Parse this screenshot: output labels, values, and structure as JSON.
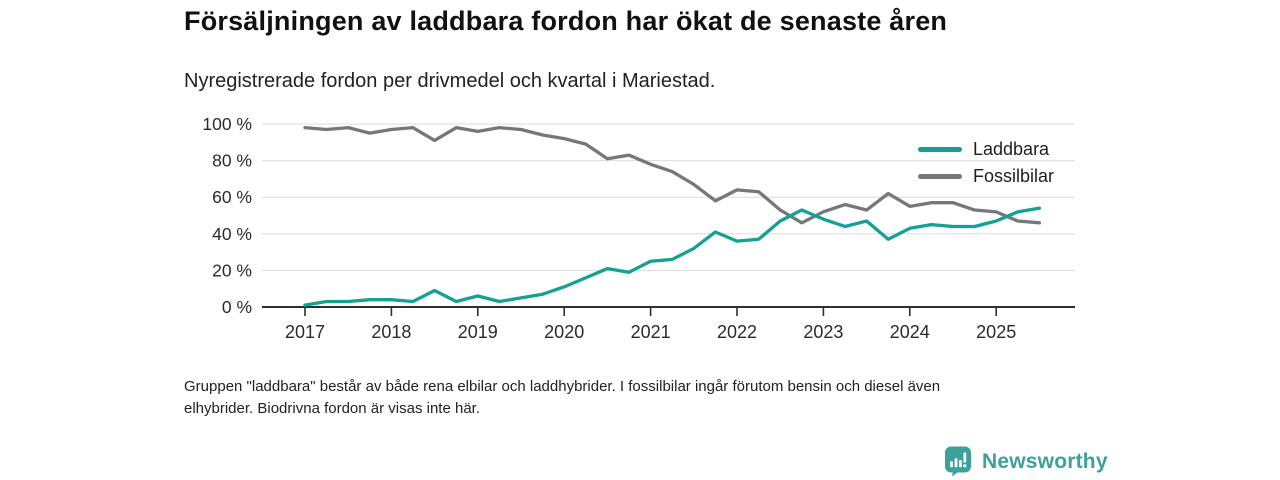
{
  "header": {
    "title": "Försäljningen av laddbara fordon har ökat de senaste åren",
    "subtitle": "Nyregistrerade fordon per drivmedel och kvartal i Mariestad."
  },
  "footnote": {
    "lines": [
      "Gruppen \"laddbara\" består av både rena elbilar och laddhybrider. I fossilbilar ingår förutom bensin och diesel även",
      "elhybrider. Biodrivna fordon är visas inte här."
    ]
  },
  "logo": {
    "text": "Newsworthy",
    "icon": "bar-chart-speech-bubble-icon"
  },
  "colors": {
    "laddbara": "#13a193",
    "fossilbilar": "#77777a",
    "grid": "#dcdcdc",
    "axis": "#2e2e2e",
    "tick_label": "#2b2b2b",
    "logo_teal": "#3ba19a"
  },
  "chart_data": {
    "type": "line",
    "title": "Försäljningen av laddbara fordon har ökat de senaste åren",
    "subtitle": "Nyregistrerade fordon per drivmedel och kvartal i Mariestad.",
    "unit": "%",
    "ylim": [
      0,
      100
    ],
    "grid": "horizontal",
    "legend_position": "top-right",
    "categories": [
      "2017Q1",
      "2017Q2",
      "2017Q3",
      "2017Q4",
      "2018Q1",
      "2018Q2",
      "2018Q3",
      "2018Q4",
      "2019Q1",
      "2019Q2",
      "2019Q3",
      "2019Q4",
      "2020Q1",
      "2020Q2",
      "2020Q3",
      "2020Q4",
      "2021Q1",
      "2021Q2",
      "2021Q3",
      "2021Q4",
      "2022Q1",
      "2022Q2",
      "2022Q3",
      "2022Q4",
      "2023Q1",
      "2023Q2",
      "2023Q3",
      "2023Q4",
      "2024Q1",
      "2024Q2",
      "2024Q3",
      "2024Q4",
      "2025Q1",
      "2025Q2",
      "2025Q3"
    ],
    "series": [
      {
        "name": "Laddbara",
        "values": [
          1,
          3,
          3,
          4,
          4,
          3,
          9,
          3,
          6,
          3,
          5,
          7,
          11,
          16,
          21,
          19,
          25,
          26,
          32,
          41,
          36,
          37,
          47,
          53,
          48,
          44,
          47,
          37,
          43,
          45,
          44,
          44,
          47,
          52,
          54
        ]
      },
      {
        "name": "Fossilbilar",
        "values": [
          98,
          97,
          98,
          95,
          97,
          98,
          91,
          98,
          96,
          98,
          97,
          94,
          92,
          89,
          81,
          83,
          78,
          74,
          67,
          58,
          64,
          63,
          53,
          46,
          52,
          56,
          53,
          62,
          55,
          57,
          57,
          53,
          52,
          47,
          46
        ]
      }
    ],
    "yticks": [
      0,
      20,
      40,
      60,
      80,
      100
    ],
    "ytick_labels": [
      "0 %",
      "20 %",
      "40 %",
      "60 %",
      "80 %",
      "100 %"
    ],
    "x_tick_labels": [
      "2017",
      "2018",
      "2019",
      "2020",
      "2021",
      "2022",
      "2023",
      "2024",
      "2025"
    ],
    "x_tick_indices": [
      0,
      4,
      8,
      12,
      16,
      20,
      24,
      28,
      32
    ]
  }
}
